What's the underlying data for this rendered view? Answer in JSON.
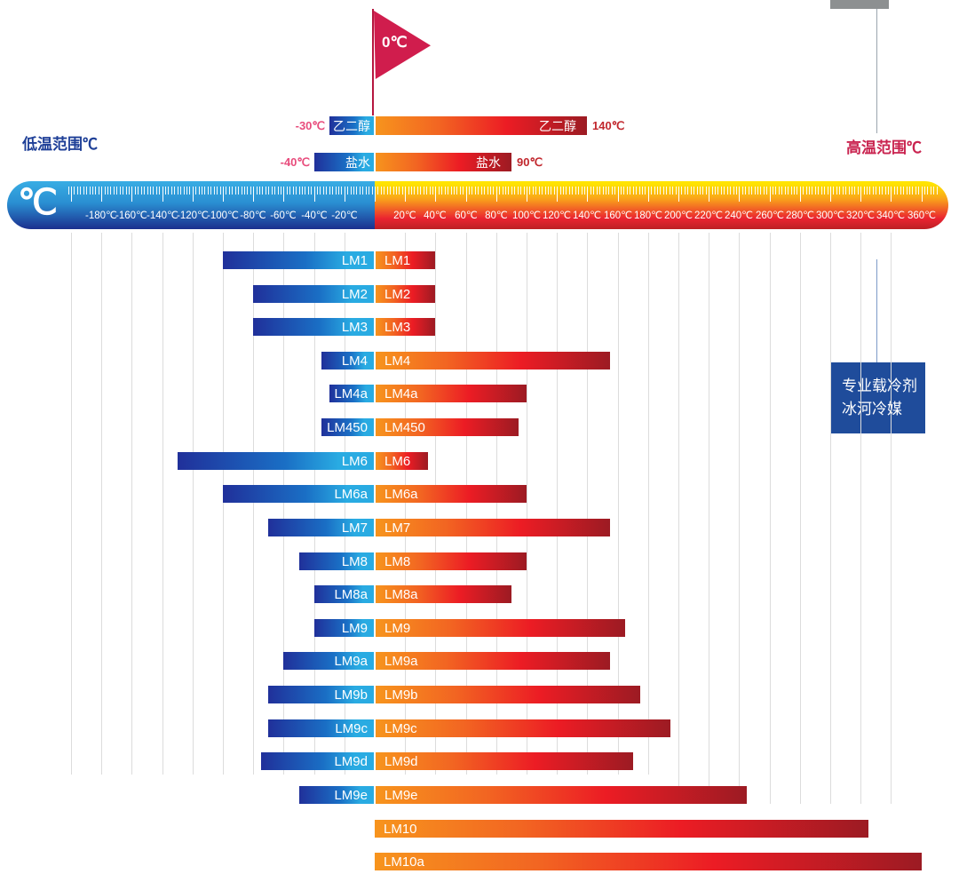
{
  "labels": {
    "low_temp": "低温范围℃",
    "high_temp": "高温范围℃",
    "unit_symbol": "℃"
  },
  "flag": {
    "label": "0℃"
  },
  "badge": {
    "line1": "专业载冷剂",
    "line2": "冰河冷媒"
  },
  "colors": {
    "cold_gradient_start": "#20309a",
    "cold_gradient_end": "#29abe2",
    "warm_gradient_start": "#f7941d",
    "warm_gradient_mid": "#ec1c24",
    "warm_gradient_end": "#9c1b23",
    "flag": "#d01d4d",
    "badge_bg": "#1f4c9b",
    "low_label": "#1e3f97",
    "high_label": "#c9234f",
    "min_label": "#e84c7c",
    "max_label": "#c1272d",
    "gridline": "#dcdcdc"
  },
  "chart_data": {
    "type": "bar",
    "subtype": "horizontal-temperature-range",
    "unit": "℃",
    "zero_marker": "0℃",
    "axis": {
      "min": -200,
      "max": 360,
      "tick_step": 20,
      "tick_values": [
        -180,
        -160,
        -140,
        -120,
        -100,
        -80,
        -60,
        -40,
        -20,
        20,
        40,
        60,
        80,
        100,
        120,
        140,
        160,
        180,
        200,
        220,
        240,
        260,
        280,
        300,
        320,
        340,
        360
      ],
      "tick_labels": [
        "-180℃",
        "-160℃",
        "-140℃",
        "-120℃",
        "-100℃",
        "-80℃",
        "-60℃",
        "-40℃",
        "-20℃",
        "20℃",
        "40℃",
        "60℃",
        "80℃",
        "100℃",
        "120℃",
        "140℃",
        "160℃",
        "180℃",
        "200℃",
        "220℃",
        "240℃",
        "260℃",
        "280℃",
        "300℃",
        "320℃",
        "340℃",
        "360℃"
      ]
    },
    "reference_bars": [
      {
        "name": "乙二醇",
        "min": -30,
        "max": 140,
        "min_label": "-30℃",
        "max_label": "140℃"
      },
      {
        "name": "盐水",
        "min": -40,
        "max": 90,
        "min_label": "-40℃",
        "max_label": "90℃"
      }
    ],
    "products": [
      {
        "name": "LM1",
        "min": -100,
        "max": 40
      },
      {
        "name": "LM2",
        "min": -80,
        "max": 40
      },
      {
        "name": "LM3",
        "min": -80,
        "max": 40
      },
      {
        "name": "LM4",
        "min": -35,
        "max": 155
      },
      {
        "name": "LM4a",
        "min": -30,
        "max": 100
      },
      {
        "name": "LM450",
        "min": -35,
        "max": 95
      },
      {
        "name": "LM6",
        "min": -130,
        "max": 35
      },
      {
        "name": "LM6a",
        "min": -100,
        "max": 100
      },
      {
        "name": "LM7",
        "min": -70,
        "max": 155
      },
      {
        "name": "LM8",
        "min": -50,
        "max": 100
      },
      {
        "name": "LM8a",
        "min": -40,
        "max": 90
      },
      {
        "name": "LM9",
        "min": -40,
        "max": 165
      },
      {
        "name": "LM9a",
        "min": -60,
        "max": 155
      },
      {
        "name": "LM9b",
        "min": -70,
        "max": 175
      },
      {
        "name": "LM9c",
        "min": -70,
        "max": 195
      },
      {
        "name": "LM9d",
        "min": -75,
        "max": 170
      },
      {
        "name": "LM9e",
        "min": -50,
        "max": 245
      },
      {
        "name": "LM10",
        "min": 0,
        "max": 325
      },
      {
        "name": "LM10a",
        "min": 0,
        "max": 360
      }
    ]
  }
}
